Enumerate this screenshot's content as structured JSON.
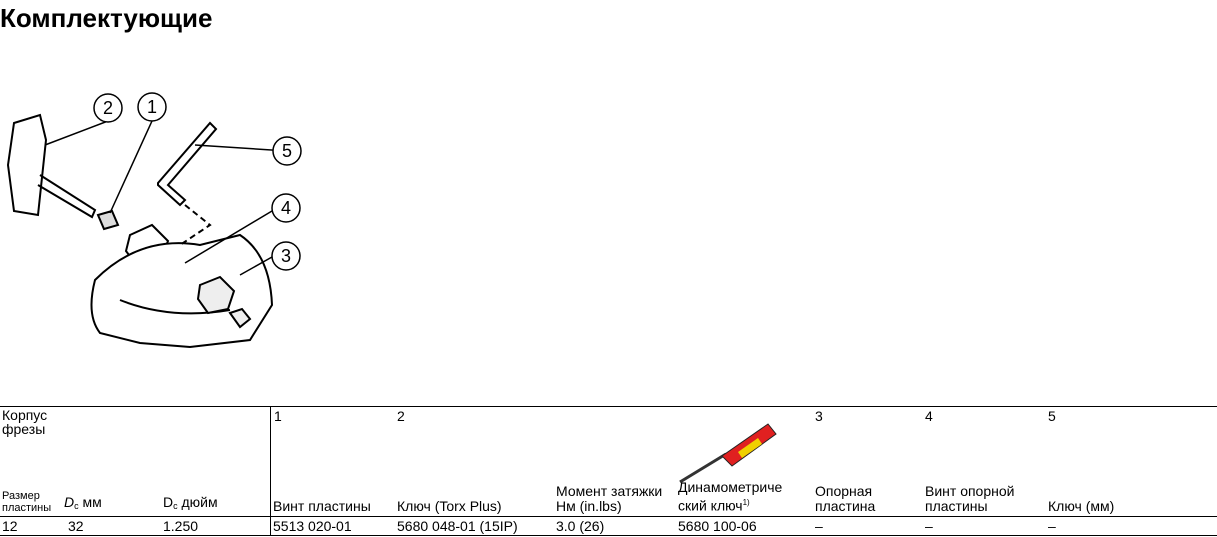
{
  "header": {
    "title": "Комплектующие"
  },
  "diagram": {
    "callouts": [
      "1",
      "2",
      "3",
      "4",
      "5"
    ]
  },
  "table": {
    "group_header": "Корпус фрезы",
    "component_numbers": [
      "1",
      "2",
      "3",
      "4",
      "5"
    ],
    "columns": {
      "insert_size": "Размер пластины",
      "dc_mm": {
        "symbol": "D",
        "sub": "c",
        "unit": "мм"
      },
      "dc_inch": {
        "symbol": "D",
        "sub": "c",
        "unit": "дюйм"
      },
      "insert_screw": "Винт пластины",
      "key_torx": "Ключ (Torx Plus)",
      "torque": "Момент затяжки Нм (in.lbs)",
      "torque_key": "Динамометриче ский ключ",
      "torque_key_note": "1)",
      "shim": "Опорная пластина",
      "shim_screw": "Винт опорной пластины",
      "key_mm": "Ключ (мм)"
    },
    "rows": [
      [
        "12",
        "32",
        "1.250",
        "5513 020-01",
        "5680 048-01 (15IP)",
        "3.0 (26)",
        "5680 100-06",
        "–",
        "–",
        "–"
      ]
    ]
  }
}
